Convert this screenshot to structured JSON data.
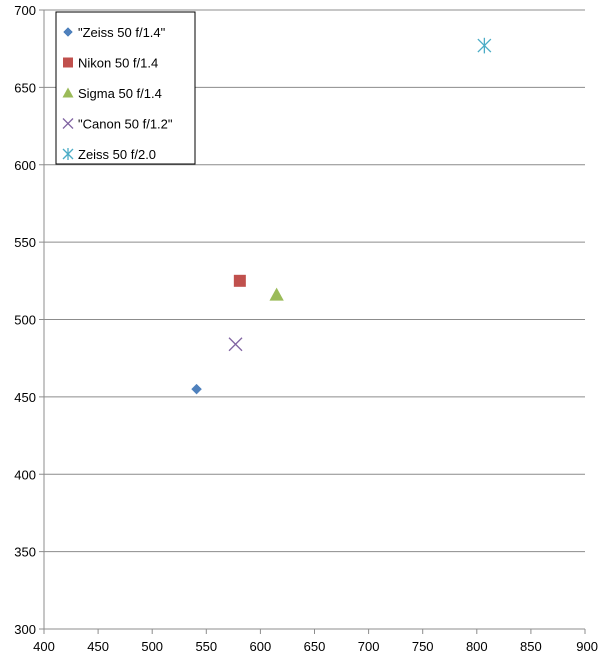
{
  "chart_data": {
    "type": "scatter",
    "title": "",
    "xlabel": "",
    "ylabel": "",
    "xlim": [
      400,
      900
    ],
    "ylim": [
      300,
      700
    ],
    "x_ticks": [
      "400",
      "450",
      "500",
      "550",
      "600",
      "650",
      "700",
      "750",
      "800",
      "850",
      "900"
    ],
    "y_ticks": [
      "300",
      "350",
      "400",
      "450",
      "500",
      "550",
      "600",
      "650",
      "700"
    ],
    "grid": "horizontal",
    "legend_position": "top-left",
    "series": [
      {
        "name": "\"Zeiss 50 f/1.4\"",
        "marker": "diamond",
        "color": "#4f81bd",
        "points": [
          {
            "x": 541,
            "y": 455
          }
        ]
      },
      {
        "name": "Nikon 50 f/1.4",
        "marker": "square",
        "color": "#c0504d",
        "points": [
          {
            "x": 581,
            "y": 525
          }
        ]
      },
      {
        "name": "Sigma 50 f/1.4",
        "marker": "triangle",
        "color": "#9bbb59",
        "points": [
          {
            "x": 615,
            "y": 516
          }
        ]
      },
      {
        "name": "\"Canon 50 f/1.2\"",
        "marker": "x",
        "color": "#8064a2",
        "points": [
          {
            "x": 577,
            "y": 484
          }
        ]
      },
      {
        "name": "Zeiss 50 f/2.0",
        "marker": "asterisk",
        "color": "#4bacc6",
        "points": [
          {
            "x": 807,
            "y": 677
          }
        ]
      }
    ]
  }
}
